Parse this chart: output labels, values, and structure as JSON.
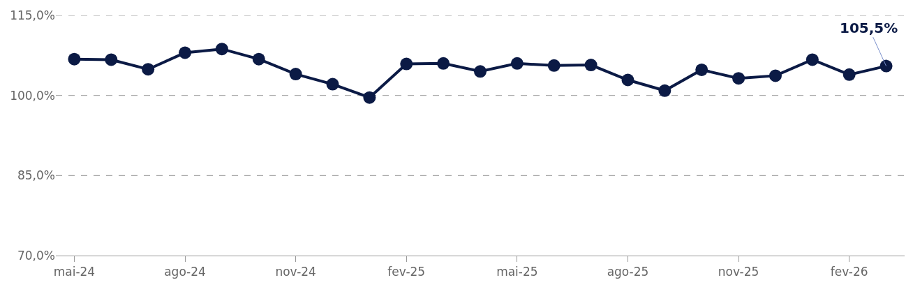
{
  "chart_data": {
    "type": "line",
    "categories": [
      "mai-24",
      null,
      null,
      "ago-24",
      null,
      null,
      "nov-24",
      null,
      null,
      "fev-25",
      null,
      null,
      "mai-25",
      null,
      null,
      "ago-25",
      null,
      null,
      "nov-25",
      null,
      null,
      "fev-26",
      null
    ],
    "series": [
      {
        "color": "#0b1a45",
        "values": [
          106.8,
          106.7,
          104.9,
          108.0,
          108.7,
          106.8,
          104.0,
          102.1,
          99.6,
          105.9,
          106.0,
          104.5,
          106.0,
          105.6,
          105.7,
          102.9,
          100.9,
          104.8,
          103.2,
          103.7,
          106.7,
          103.9,
          105.5
        ]
      }
    ],
    "ylim": [
      70,
      115
    ],
    "yticks": [
      {
        "value": 70,
        "label": "70,0%"
      },
      {
        "value": 85,
        "label": "85,0%"
      },
      {
        "value": 100,
        "label": "100,0%"
      },
      {
        "value": 115,
        "label": "115,0%"
      }
    ],
    "grid": "y",
    "marker": "circle",
    "line_style": "solid",
    "annotations": [
      {
        "text": "105,5%",
        "y": 105.5
      }
    ]
  }
}
